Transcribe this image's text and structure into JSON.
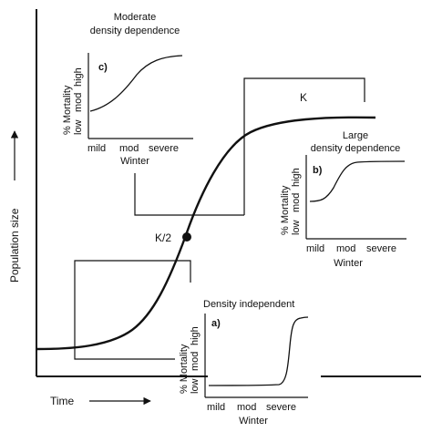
{
  "main": {
    "y_axis_label": "Population size",
    "x_axis_label": "Time",
    "k_label": "K",
    "k_half_label": "K/2"
  },
  "inset_a": {
    "title": "Density independent",
    "letter": "a)",
    "y_axis_label": "% Mortality",
    "y_ticks": [
      "low",
      "mod",
      "high"
    ],
    "x_ticks": [
      "mild",
      "mod",
      "severe"
    ],
    "x_axis_label": "Winter"
  },
  "inset_b": {
    "title_line1": "Large",
    "title_line2": "density dependence",
    "letter": "b)",
    "y_axis_label": "% Mortality",
    "y_ticks": [
      "low",
      "mod",
      "high"
    ],
    "x_ticks": [
      "mild",
      "mod",
      "severe"
    ],
    "x_axis_label": "Winter"
  },
  "inset_c": {
    "title_line1": "Moderate",
    "title_line2": "density dependence",
    "letter": "c)",
    "y_axis_label": "% Mortality",
    "y_ticks": [
      "low",
      "mod",
      "high"
    ],
    "x_ticks": [
      "mild",
      "mod",
      "severe"
    ],
    "x_axis_label": "Winter"
  }
}
